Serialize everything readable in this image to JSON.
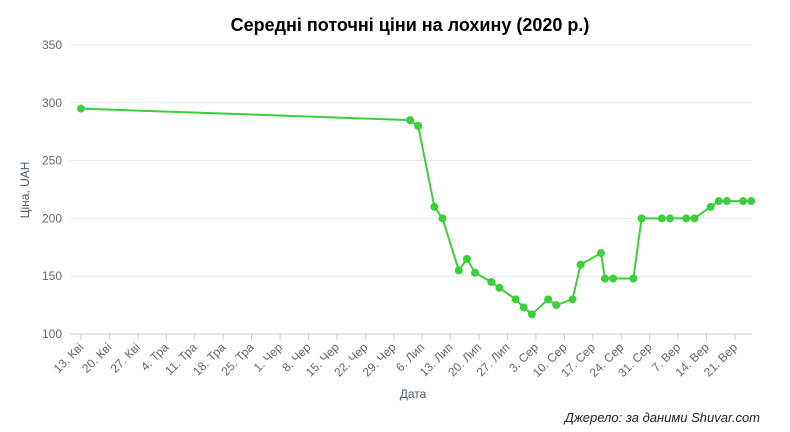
{
  "source": "Джерело: за даними Shuvar.com",
  "colors": {
    "line": "#3ccf3c",
    "grid": "#e6e6e6",
    "tick": "#666666",
    "axis": "#cccccc"
  },
  "chart_data": {
    "type": "line",
    "title": "Середні поточні ціни на лохину (2020 р.)",
    "xlabel": "Дата",
    "ylabel": "Ціна, UAH",
    "ylim": [
      100,
      350
    ],
    "yticks": [
      100,
      150,
      200,
      250,
      300,
      350
    ],
    "grid": true,
    "xticks": [
      {
        "date": "2020-04-13",
        "label": "13. Кві"
      },
      {
        "date": "2020-04-20",
        "label": "20. Кві"
      },
      {
        "date": "2020-04-27",
        "label": "27. Кві"
      },
      {
        "date": "2020-05-04",
        "label": "4. Тра"
      },
      {
        "date": "2020-05-11",
        "label": "11. Тра"
      },
      {
        "date": "2020-05-18",
        "label": "18. Тра"
      },
      {
        "date": "2020-05-25",
        "label": "25. Тра"
      },
      {
        "date": "2020-06-01",
        "label": "1. Чер"
      },
      {
        "date": "2020-06-08",
        "label": "8. Чер"
      },
      {
        "date": "2020-06-15",
        "label": "15. Чер"
      },
      {
        "date": "2020-06-22",
        "label": "22. Чер"
      },
      {
        "date": "2020-06-29",
        "label": "29. Чер"
      },
      {
        "date": "2020-07-06",
        "label": "6. Лип"
      },
      {
        "date": "2020-07-13",
        "label": "13. Лип"
      },
      {
        "date": "2020-07-20",
        "label": "20. Лип"
      },
      {
        "date": "2020-07-27",
        "label": "27. Лип"
      },
      {
        "date": "2020-08-03",
        "label": "3. Сер"
      },
      {
        "date": "2020-08-10",
        "label": "10. Сер"
      },
      {
        "date": "2020-08-17",
        "label": "17. Сер"
      },
      {
        "date": "2020-08-24",
        "label": "24. Сер"
      },
      {
        "date": "2020-08-31",
        "label": "31. Сер"
      },
      {
        "date": "2020-09-07",
        "label": "7. Вер"
      },
      {
        "date": "2020-09-14",
        "label": "14. Вер"
      },
      {
        "date": "2020-09-21",
        "label": "21. Вер"
      }
    ],
    "series": [
      {
        "points": [
          {
            "x": "2020-04-13",
            "y": 295
          },
          {
            "x": "2020-07-03",
            "y": 285
          },
          {
            "x": "2020-07-05",
            "y": 280
          },
          {
            "x": "2020-07-09",
            "y": 210
          },
          {
            "x": "2020-07-11",
            "y": 200
          },
          {
            "x": "2020-07-15",
            "y": 155
          },
          {
            "x": "2020-07-17",
            "y": 165
          },
          {
            "x": "2020-07-19",
            "y": 153
          },
          {
            "x": "2020-07-23",
            "y": 145
          },
          {
            "x": "2020-07-25",
            "y": 140
          },
          {
            "x": "2020-07-29",
            "y": 130
          },
          {
            "x": "2020-07-31",
            "y": 123
          },
          {
            "x": "2020-08-02",
            "y": 117
          },
          {
            "x": "2020-08-06",
            "y": 130
          },
          {
            "x": "2020-08-08",
            "y": 125
          },
          {
            "x": "2020-08-12",
            "y": 130
          },
          {
            "x": "2020-08-14",
            "y": 160
          },
          {
            "x": "2020-08-19",
            "y": 170
          },
          {
            "x": "2020-08-20",
            "y": 148
          },
          {
            "x": "2020-08-22",
            "y": 148
          },
          {
            "x": "2020-08-27",
            "y": 148
          },
          {
            "x": "2020-08-29",
            "y": 200
          },
          {
            "x": "2020-09-03",
            "y": 200
          },
          {
            "x": "2020-09-05",
            "y": 200
          },
          {
            "x": "2020-09-09",
            "y": 200
          },
          {
            "x": "2020-09-11",
            "y": 200
          },
          {
            "x": "2020-09-15",
            "y": 210
          },
          {
            "x": "2020-09-17",
            "y": 215
          },
          {
            "x": "2020-09-19",
            "y": 215
          },
          {
            "x": "2020-09-23",
            "y": 215
          },
          {
            "x": "2020-09-25",
            "y": 215
          }
        ]
      }
    ]
  }
}
